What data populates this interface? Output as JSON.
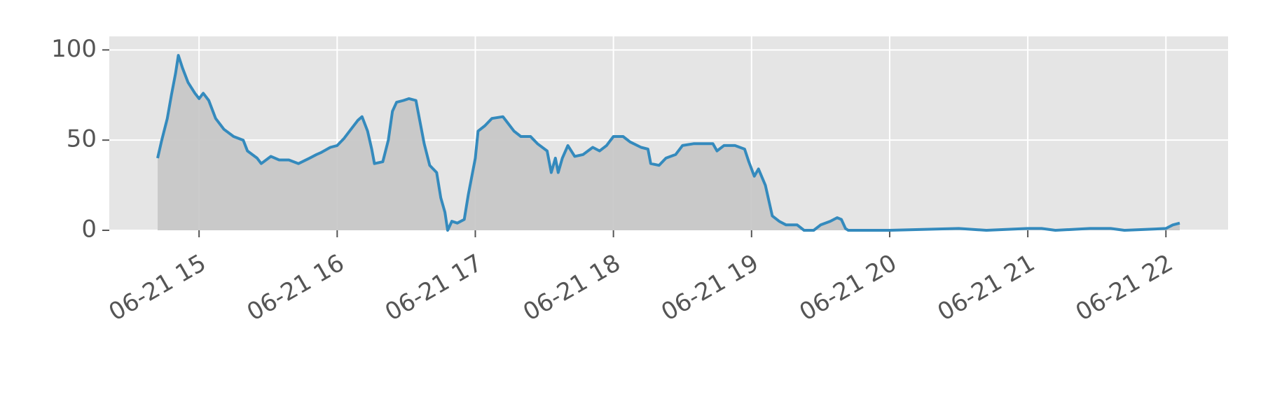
{
  "chart_data": {
    "type": "area",
    "x": [
      14.7,
      14.73,
      14.77,
      14.8,
      14.83,
      14.85,
      14.88,
      14.92,
      14.97,
      15.0,
      15.03,
      15.07,
      15.12,
      15.18,
      15.25,
      15.32,
      15.35,
      15.42,
      15.45,
      15.52,
      15.58,
      15.65,
      15.72,
      15.8,
      15.85,
      15.88,
      15.95,
      16.0,
      16.05,
      16.1,
      16.15,
      16.18,
      16.22,
      16.25,
      16.27,
      16.33,
      16.37,
      16.4,
      16.43,
      16.48,
      16.52,
      16.57,
      16.6,
      16.63,
      16.67,
      16.72,
      16.75,
      16.78,
      16.8,
      16.83,
      16.87,
      16.92,
      16.95,
      17.0,
      17.02,
      17.07,
      17.12,
      17.2,
      17.23,
      17.28,
      17.33,
      17.4,
      17.45,
      17.52,
      17.55,
      17.58,
      17.6,
      17.63,
      17.67,
      17.72,
      17.78,
      17.85,
      17.9,
      17.95,
      18.0,
      18.07,
      18.12,
      18.2,
      18.25,
      18.27,
      18.33,
      18.38,
      18.45,
      18.5,
      18.58,
      18.65,
      18.72,
      18.75,
      18.8,
      18.88,
      18.95,
      18.98,
      19.02,
      19.05,
      19.1,
      19.15,
      19.2,
      19.25,
      19.3,
      19.33,
      19.38,
      19.45,
      19.5,
      19.57,
      19.62,
      19.65,
      19.68,
      19.7,
      20.0,
      20.5,
      20.7,
      21.0,
      21.1,
      21.2,
      21.45,
      21.6,
      21.7,
      22.0,
      22.05,
      22.1
    ],
    "series": [
      {
        "color": "#348abd",
        "fill": "#c5c5c5",
        "values": [
          40,
          50,
          62,
          75,
          87,
          97,
          90,
          82,
          76,
          73,
          76,
          72,
          62,
          56,
          52,
          50,
          44,
          40,
          37,
          41,
          39,
          39,
          37,
          40,
          42,
          43,
          46,
          47,
          51,
          56,
          61,
          63,
          55,
          45,
          37,
          38,
          50,
          66,
          71,
          72,
          73,
          72,
          60,
          48,
          36,
          32,
          18,
          10,
          0,
          5,
          4,
          6,
          20,
          40,
          55,
          58,
          62,
          63,
          60,
          55,
          52,
          52,
          48,
          44,
          32,
          40,
          32,
          40,
          47,
          41,
          42,
          46,
          44,
          47,
          52,
          52,
          49,
          46,
          45,
          37,
          36,
          40,
          42,
          47,
          48,
          48,
          48,
          44,
          47,
          47,
          45,
          38,
          30,
          34,
          25,
          8,
          5,
          3,
          3,
          3,
          0,
          0,
          3,
          5,
          7,
          6,
          1,
          0,
          0,
          1,
          0,
          1,
          1,
          0,
          1,
          1,
          0,
          1,
          3,
          4
        ]
      }
    ],
    "xlim": [
      14.35,
      22.45
    ],
    "xticks": [
      {
        "value": 15,
        "label": "06-21 15"
      },
      {
        "value": 16,
        "label": "06-21 16"
      },
      {
        "value": 17,
        "label": "06-21 17"
      },
      {
        "value": 18,
        "label": "06-21 18"
      },
      {
        "value": 19,
        "label": "06-21 19"
      },
      {
        "value": 20,
        "label": "06-21 20"
      },
      {
        "value": 21,
        "label": "06-21 21"
      },
      {
        "value": 22,
        "label": "06-21 22"
      }
    ],
    "ylim": [
      0,
      107.5
    ],
    "yticks": [
      0,
      50,
      100
    ],
    "grid": true
  }
}
